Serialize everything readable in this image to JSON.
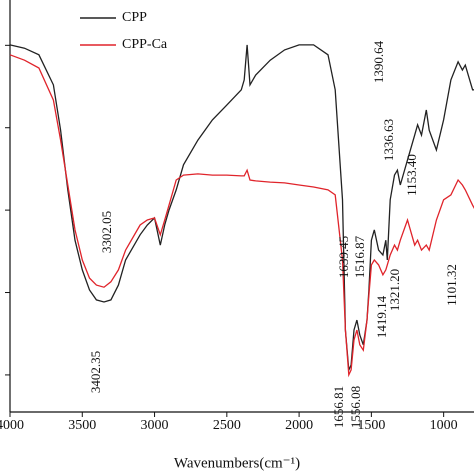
{
  "chart_data": {
    "type": "line",
    "x_label": "Wavenumbers(cm⁻¹)",
    "x": [
      4000,
      3900,
      3800,
      3700,
      3650,
      3600,
      3550,
      3500,
      3450,
      3402,
      3350,
      3302,
      3250,
      3200,
      3100,
      3050,
      3000,
      2960,
      2930,
      2900,
      2850,
      2800,
      2700,
      2600,
      2500,
      2400,
      2380,
      2360,
      2340,
      2300,
      2200,
      2100,
      2000,
      1900,
      1800,
      1750,
      1700,
      1680,
      1656,
      1640,
      1620,
      1600,
      1580,
      1556,
      1530,
      1517,
      1500,
      1480,
      1450,
      1420,
      1400,
      1390,
      1370,
      1340,
      1320,
      1300,
      1250,
      1200,
      1180,
      1153,
      1120,
      1100,
      1050,
      1000,
      950,
      900,
      870,
      850,
      800,
      780
    ],
    "series": [
      {
        "name": "CPP",
        "color": "#222222",
        "values": [
          80.1,
          79.3,
          77.7,
          70.4,
          59.4,
          44.9,
          32.7,
          25.5,
          20.6,
          18.2,
          17.7,
          18.2,
          21.8,
          27.9,
          34,
          36.4,
          38.1,
          31.5,
          36.4,
          40,
          44.9,
          51,
          57,
          61.9,
          65.5,
          69.2,
          71.6,
          80.1,
          70.4,
          72.8,
          76.4,
          78.9,
          80.1,
          80.1,
          77.7,
          69.2,
          42.5,
          10.9,
          1.2,
          2.4,
          10.9,
          13.3,
          9.7,
          7.3,
          13.3,
          20.6,
          32.7,
          35.2,
          30.3,
          29.1,
          32.7,
          27.9,
          42.5,
          48.5,
          49.7,
          46.1,
          52.2,
          58.2,
          60.7,
          58.2,
          64.3,
          59.4,
          54.6,
          61.9,
          71.6,
          76,
          74,
          75.2,
          69.2,
          69.2
        ]
      },
      {
        "name": "CPP-Ca",
        "color": "#e0242b",
        "values": [
          77.7,
          76.4,
          74.5,
          66.7,
          57,
          46.1,
          35.2,
          27.9,
          23.5,
          21.8,
          21.3,
          22.6,
          25.5,
          30.3,
          36.4,
          37.6,
          38.1,
          34,
          37.6,
          41.2,
          47.3,
          48.5,
          48.8,
          48.5,
          48.5,
          48.3,
          48.3,
          49.7,
          47.3,
          47.1,
          46.8,
          46.6,
          46.1,
          45.6,
          44.9,
          43.7,
          27.9,
          10.9,
          0,
          1.2,
          8.5,
          10.9,
          7.3,
          6,
          13.3,
          19.4,
          26.7,
          27.9,
          26.7,
          24.3,
          25.5,
          26.7,
          29.1,
          31.5,
          30.3,
          32.7,
          37.6,
          31.5,
          32.7,
          30.3,
          31.5,
          30.3,
          37.6,
          42.5,
          43.7,
          47.3,
          46.1,
          44.9,
          41.2,
          40
        ]
      }
    ],
    "xlim": [
      4000,
      790
    ],
    "xticks": [
      4000,
      3500,
      3000,
      2500,
      2000,
      1500,
      1000
    ],
    "ylim": [
      -9,
      91
    ],
    "yticks": [
      0,
      20,
      40,
      60,
      80
    ],
    "annotations": [
      "3402.35",
      "3302.05",
      "1656.81",
      "1639.45",
      "1556.08",
      "1516.87",
      "1390.64",
      "1336.63",
      "1419.14",
      "1321.20",
      "1153.40",
      "1101.32"
    ]
  }
}
